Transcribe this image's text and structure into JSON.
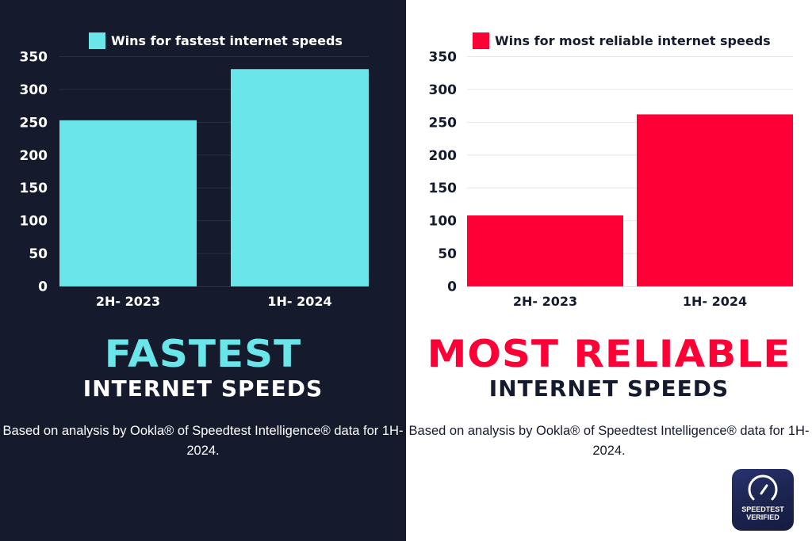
{
  "chart_data": [
    {
      "type": "bar",
      "categories": [
        "2H- 2023",
        "1H- 2024"
      ],
      "series": [
        {
          "name": "Wins for fastest internet speeds",
          "values": [
            253,
            331
          ]
        }
      ],
      "ylim": [
        0,
        350
      ],
      "yticks": [
        "0",
        "50",
        "100",
        "150",
        "200",
        "250",
        "300",
        "350"
      ],
      "grid": true,
      "legend": "top",
      "color": "#6ae5e9"
    },
    {
      "type": "bar",
      "categories": [
        "2H- 2023",
        "1H- 2024"
      ],
      "series": [
        {
          "name": "Wins for most reliable internet speeds",
          "values": [
            108,
            262
          ]
        }
      ],
      "ylim": [
        0,
        350
      ],
      "yticks": [
        "0",
        "50",
        "100",
        "150",
        "200",
        "250",
        "300",
        "350"
      ],
      "grid": true,
      "legend": "top",
      "color": "#ff0036"
    }
  ],
  "left": {
    "headline": "FASTEST",
    "subhead": "INTERNET SPEEDS",
    "body": "Based on analysis by Ookla® of Speedtest Intelligence® data for 1H- 2024.",
    "bg": "#151a2d",
    "accent": "#6ae5e9"
  },
  "right": {
    "headline": "MOST RELIABLE",
    "subhead": "INTERNET SPEEDS",
    "body": "Based on analysis by Ookla® of Speedtest Intelligence® data for 1H- 2024.",
    "bg": "#ffffff",
    "accent": "#ff0036"
  },
  "badge": {
    "icon": "speedometer-icon",
    "line1": "SPEEDTEST",
    "line2": "VERIFIED"
  }
}
